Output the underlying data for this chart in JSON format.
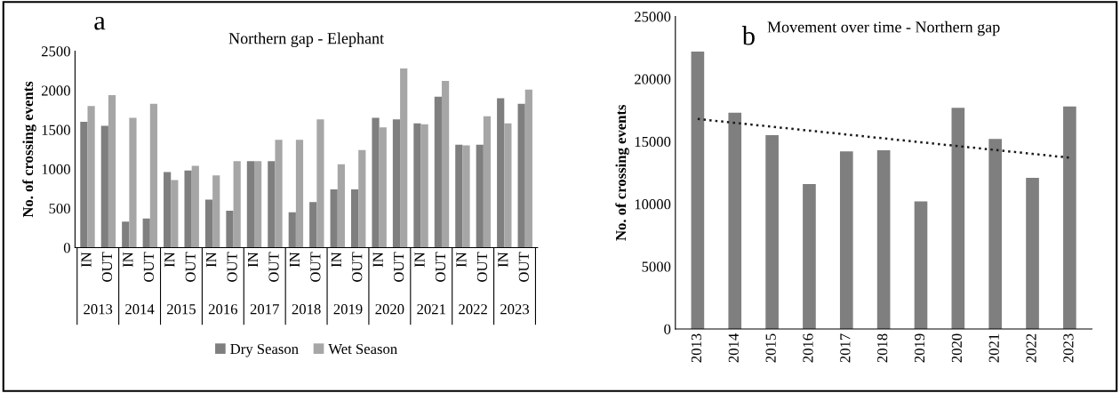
{
  "chart_data": [
    {
      "type": "bar",
      "title": "Northern gap - Elephant",
      "ylabel": "No. of crossing events",
      "categories": [
        "IN",
        "OUT",
        "IN",
        "OUT",
        "IN",
        "OUT",
        "IN",
        "OUT",
        "IN",
        "OUT",
        "IN",
        "OUT",
        "IN",
        "OUT",
        "IN",
        "OUT",
        "IN",
        "OUT",
        "IN",
        "OUT",
        "IN",
        "OUT"
      ],
      "series": [
        {
          "name": "Dry Season",
          "color": "#7f7f7f",
          "values": [
            1600,
            1550,
            330,
            370,
            960,
            980,
            610,
            470,
            1100,
            1100,
            450,
            580,
            740,
            740,
            1650,
            1630,
            1580,
            1920,
            1310,
            1310,
            1900,
            1830
          ]
        },
        {
          "name": "Wet Season",
          "color": "#a6a6a6",
          "values": [
            1800,
            1940,
            1650,
            1830,
            860,
            1040,
            920,
            1100,
            1100,
            1370,
            1370,
            1630,
            1060,
            1240,
            1530,
            2280,
            1570,
            2120,
            1300,
            1670,
            1580,
            2010
          ]
        }
      ],
      "annotations": [
        "a",
        "2013",
        "2014",
        "2015",
        "2016",
        "2017",
        "2018",
        "2019",
        "2020",
        "2021",
        "2022",
        "2023"
      ],
      "ylim": [
        0,
        2500
      ],
      "yticks": [
        0,
        500,
        1000,
        1500,
        2000,
        2500
      ],
      "grid": false,
      "legend": "bottom"
    },
    {
      "type": "bar",
      "title": "Movement over time - Northern gap",
      "ylabel": "No. of crossing events",
      "categories": [
        "2013",
        "2014",
        "2015",
        "2016",
        "2017",
        "2018",
        "2019",
        "2020",
        "2021",
        "2022",
        "2023"
      ],
      "series": [
        {
          "color": "#7f7f7f",
          "values": [
            22200,
            17300,
            15500,
            11600,
            14200,
            14300,
            10200,
            17700,
            15200,
            12100,
            17800
          ]
        },
        {
          "type": "line",
          "color": "#1a1a1a",
          "line_style": "dotted",
          "values": [
            16800,
            16490,
            16180,
            15870,
            15560,
            15250,
            14940,
            14630,
            14320,
            14010,
            13700
          ]
        }
      ],
      "annotations": [
        "b"
      ],
      "ylim": [
        0,
        25000
      ],
      "yticks": [
        0,
        5000,
        10000,
        15000,
        20000,
        25000
      ],
      "grid": false,
      "legend": false
    }
  ]
}
